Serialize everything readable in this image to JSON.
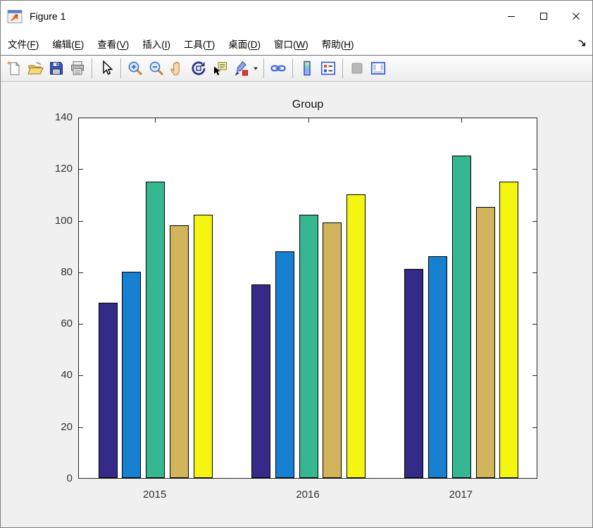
{
  "window": {
    "title": "Figure 1",
    "icon": "matlab-figure-icon",
    "controls": [
      {
        "id": "minimize",
        "name": "minimize-button"
      },
      {
        "id": "maximize",
        "name": "maximize-button"
      },
      {
        "id": "close",
        "name": "close-button"
      }
    ]
  },
  "menubar": {
    "items": [
      {
        "id": "file",
        "text": "文件",
        "key": "F"
      },
      {
        "id": "edit",
        "text": "编辑",
        "key": "E"
      },
      {
        "id": "view",
        "text": "查看",
        "key": "V"
      },
      {
        "id": "insert",
        "text": "插入",
        "key": "I"
      },
      {
        "id": "tools",
        "text": "工具",
        "key": "T"
      },
      {
        "id": "desktop",
        "text": "桌面",
        "key": "D"
      },
      {
        "id": "window",
        "text": "窗口",
        "key": "W"
      },
      {
        "id": "help",
        "text": "帮助",
        "key": "H"
      }
    ],
    "dock_icon": "dock-arrow-icon"
  },
  "toolbar": {
    "groups": [
      [
        "new-figure",
        "open-file",
        "save-figure",
        "print-figure"
      ],
      [
        "edit-cursor"
      ],
      [
        "zoom-in",
        "zoom-out",
        "pan",
        "rotate-3d",
        "data-cursor",
        "brush",
        "brush-caret"
      ],
      [
        "link-plots"
      ],
      [
        "insert-colorbar",
        "insert-legend"
      ],
      [
        "hide-plot-tools",
        "show-plot-tools"
      ]
    ],
    "disabled": [
      "hide-plot-tools"
    ]
  },
  "chart_data": {
    "type": "bar",
    "title": "Group",
    "categories": [
      "2015",
      "2016",
      "2017"
    ],
    "series": [
      {
        "name": "series-1",
        "color": "#352A87",
        "values": [
          68,
          75,
          81
        ]
      },
      {
        "name": "series-2",
        "color": "#1880D1",
        "values": [
          80,
          88,
          86
        ]
      },
      {
        "name": "series-3",
        "color": "#36B792",
        "values": [
          115,
          102,
          125
        ]
      },
      {
        "name": "series-4",
        "color": "#D2B55A",
        "values": [
          98,
          99,
          105
        ]
      },
      {
        "name": "series-5",
        "color": "#F4F511",
        "values": [
          102,
          110,
          115
        ]
      }
    ],
    "per_category_values": {
      "2015": [
        68,
        80,
        115,
        98,
        102
      ],
      "2016": [
        75,
        88,
        102,
        99,
        110
      ],
      "2017": [
        81,
        86,
        125,
        105,
        115
      ]
    },
    "xlabel": "",
    "ylabel": "",
    "ylim": [
      0,
      140
    ],
    "yticks": [
      0,
      20,
      40,
      60,
      80,
      100,
      120,
      140
    ],
    "grid": false,
    "legend_position": "none",
    "axis_color": "#262626",
    "plot_background": "#ffffff",
    "figure_background": "#f0f0f0"
  }
}
